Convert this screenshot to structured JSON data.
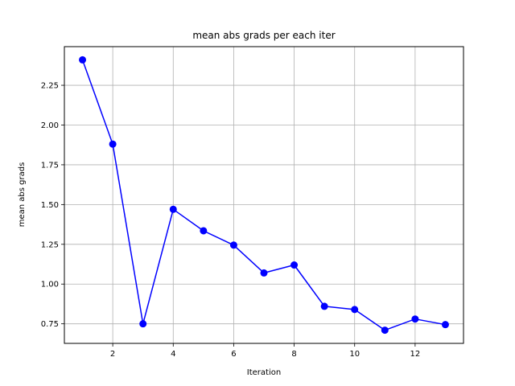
{
  "chart_data": {
    "type": "line",
    "title": "mean abs grads per each iter",
    "xlabel": "Iteration",
    "ylabel": "mean abs grads",
    "x": [
      1,
      2,
      3,
      4,
      5,
      6,
      7,
      8,
      9,
      10,
      11,
      12,
      13
    ],
    "series": [
      {
        "values": [
          2.41,
          1.88,
          0.75,
          1.47,
          1.335,
          1.245,
          1.07,
          1.12,
          0.86,
          0.84,
          0.71,
          0.78,
          0.745
        ],
        "color": "#0000ff",
        "marker": "circle"
      }
    ],
    "xlim": [
      0.4,
      13.6
    ],
    "ylim": [
      0.627,
      2.493
    ],
    "xticks": [
      2,
      4,
      6,
      8,
      10,
      12
    ],
    "xtick_labels": [
      "2",
      "4",
      "6",
      "8",
      "10",
      "12"
    ],
    "yticks": [
      0.75,
      1.0,
      1.25,
      1.5,
      1.75,
      2.0,
      2.25
    ],
    "ytick_labels": [
      "0.75",
      "1.00",
      "1.25",
      "1.50",
      "1.75",
      "2.00",
      "2.25"
    ],
    "grid": true,
    "grid_color": "#b0b0b0"
  }
}
